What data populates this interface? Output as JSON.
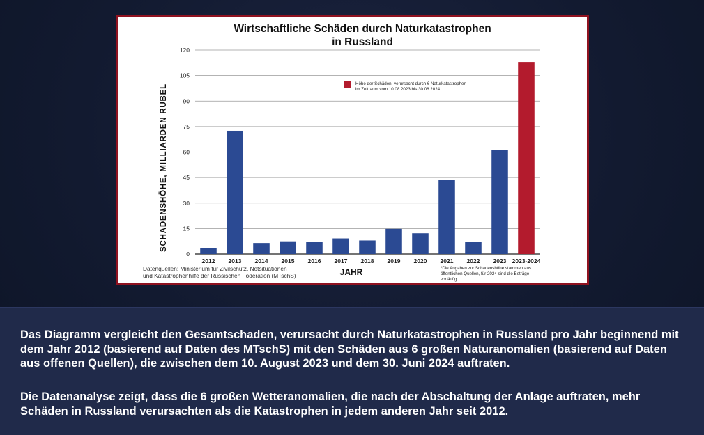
{
  "chart_data": {
    "type": "bar",
    "title_line1": "Wirtschaftliche Schäden durch Naturkatastrophen",
    "title_line2": "in Russland",
    "xlabel": "JAHR",
    "ylabel": "SCHADENSHÖHE, MILLIARDEN RUBEL",
    "categories": [
      "2012",
      "2013",
      "2014",
      "2015",
      "2016",
      "2017",
      "2018",
      "2019",
      "2020",
      "2021",
      "2022",
      "2023",
      "2023-2024"
    ],
    "values": [
      3.5,
      72.5,
      6.5,
      7.5,
      7,
      9.2,
      8,
      14.8,
      12.2,
      43.8,
      7.2,
      61.3,
      113
    ],
    "highlight_index": 12,
    "colors": {
      "bar": "#2b4a93",
      "highlight": "#b31b2d"
    },
    "ylim": [
      0,
      120
    ],
    "yticks": [
      0,
      15,
      30,
      45,
      60,
      75,
      90,
      105,
      120
    ],
    "grid": true,
    "legend": {
      "position": "top-right",
      "line1": "Höhe der Schäden, verursacht durch 6 Naturkatastrophen",
      "line2": "im Zeitraum vom 10.08.2023 bis 30.06.2024"
    },
    "source_line1": "Datenquellen: Ministerium für Zivilschutz, Notsituationen",
    "source_line2": "und Katastrophenhilfe der Russischen Föderation (MTschS)",
    "note_line1": "*Die Angaben zur Schadenshöhe stammen aus",
    "note_line2": "öffentlichen Quellen, für 2024 sind die Beträge",
    "note_line3": "vorläufig"
  },
  "caption": {
    "paragraph1": "Das Diagramm vergleicht den Gesamtschaden, verursacht durch Naturkatastrophen in Russland pro Jahr beginnend mit dem Jahr 2012 (basierend auf Daten des MTschS) mit den Schäden aus 6 großen Naturanomalien (basierend auf Daten aus offenen Quellen), die zwischen dem 10. August 2023 und dem 30. Juni 2024 auftraten.",
    "paragraph2": "Die Datenanalyse zeigt, dass die 6 großen Wetteranomalien, die nach der Abschaltung der Anlage auftraten, mehr Schäden in Russland verursachten als die Katastrophen in jedem anderen Jahr seit 2012."
  }
}
